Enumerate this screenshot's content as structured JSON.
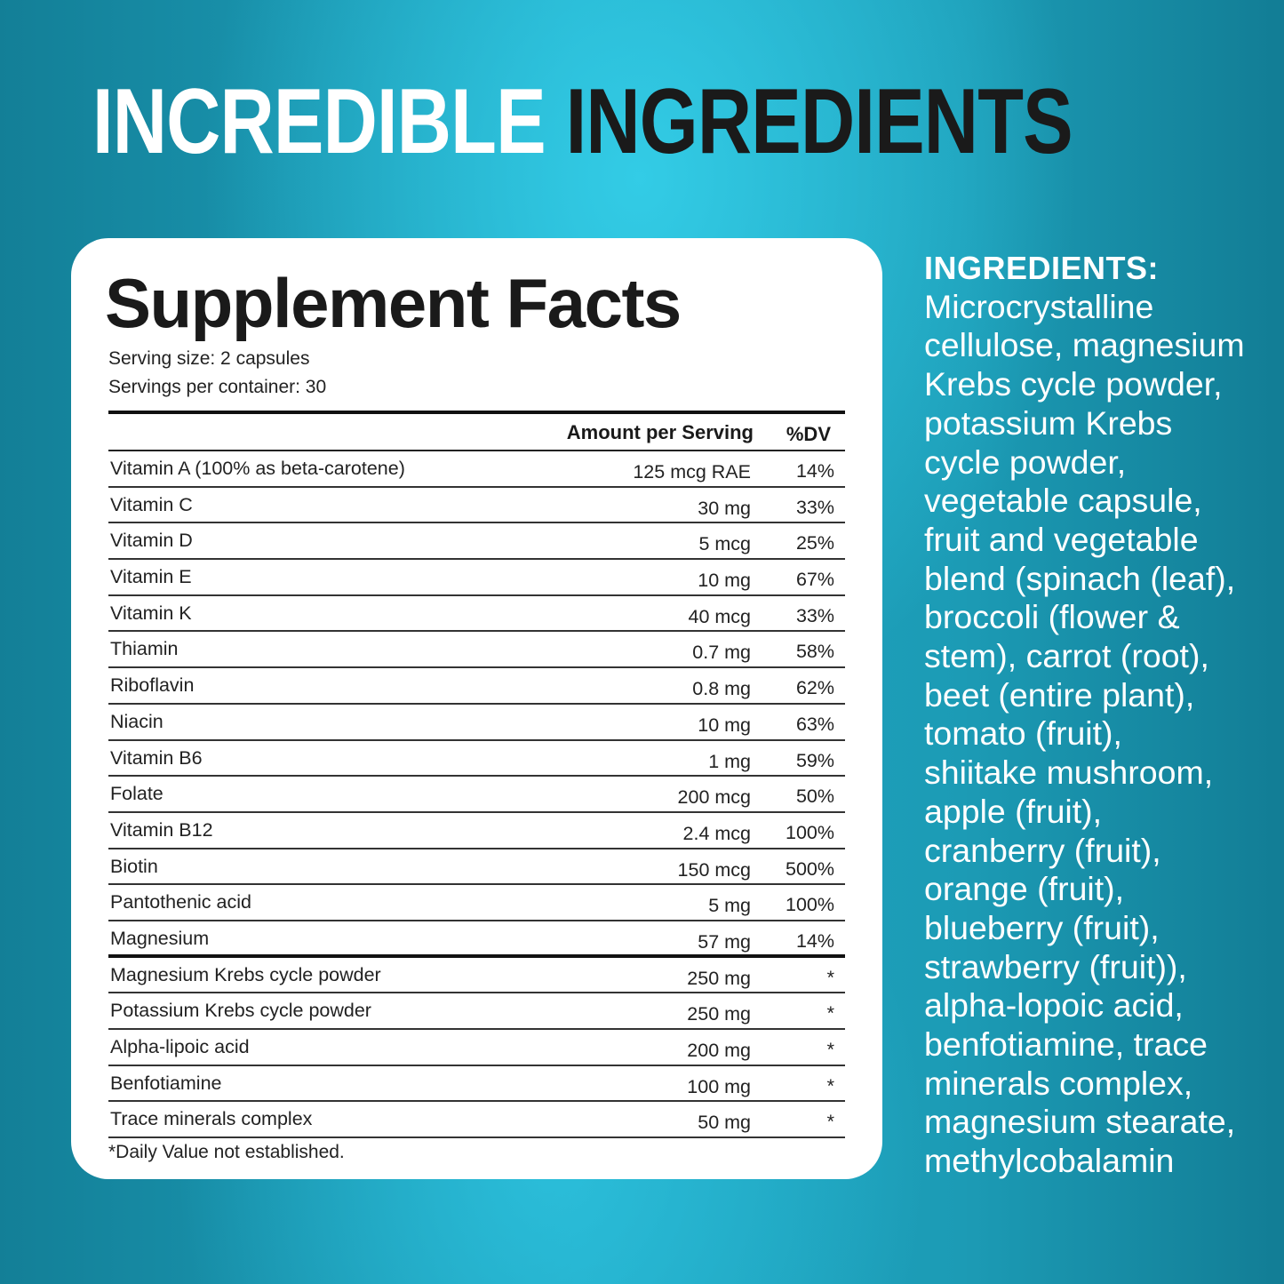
{
  "headline": {
    "part1": "INCREDIBLE",
    "part2": "INGREDIENTS"
  },
  "colors": {
    "background": "#1fa6c2",
    "card": "#ffffff",
    "headline_dark": "#1a1a1a"
  },
  "facts": {
    "title": "Supplement Facts",
    "serving_size": "Serving size: 2 capsules",
    "servings_per_container": "Servings per container: 30",
    "col_amount": "Amount per Serving",
    "col_dv": "%DV",
    "rows": [
      {
        "name": "Vitamin A (100% as beta-carotene)",
        "amount": "125 mcg RAE",
        "dv": "14%"
      },
      {
        "name": "Vitamin C",
        "amount": "30 mg",
        "dv": "33%"
      },
      {
        "name": "Vitamin D",
        "amount": "5 mcg",
        "dv": "25%"
      },
      {
        "name": "Vitamin E",
        "amount": "10 mg",
        "dv": "67%"
      },
      {
        "name": "Vitamin K",
        "amount": "40 mcg",
        "dv": "33%"
      },
      {
        "name": "Thiamin",
        "amount": "0.7 mg",
        "dv": "58%"
      },
      {
        "name": "Riboflavin",
        "amount": "0.8 mg",
        "dv": "62%"
      },
      {
        "name": "Niacin",
        "amount": "10 mg",
        "dv": "63%"
      },
      {
        "name": "Vitamin B6",
        "amount": "1 mg",
        "dv": "59%"
      },
      {
        "name": "Folate",
        "amount": "200 mcg",
        "dv": "50%"
      },
      {
        "name": "Vitamin B12",
        "amount": "2.4 mcg",
        "dv": "100%"
      },
      {
        "name": "Biotin",
        "amount": "150 mcg",
        "dv": "500%"
      },
      {
        "name": "Pantothenic acid",
        "amount": "5 mg",
        "dv": "100%"
      },
      {
        "name": "Magnesium",
        "amount": "57 mg",
        "dv": "14%"
      },
      {
        "name": "Magnesium Krebs cycle powder",
        "amount": "250 mg",
        "dv": "*"
      },
      {
        "name": "Potassium Krebs cycle powder",
        "amount": "250 mg",
        "dv": "*"
      },
      {
        "name": "Alpha-lipoic acid",
        "amount": "200 mg",
        "dv": "*"
      },
      {
        "name": "Benfotiamine",
        "amount": "100 mg",
        "dv": "*"
      },
      {
        "name": "Trace minerals complex",
        "amount": "50 mg",
        "dv": "*"
      }
    ],
    "footnote": "*Daily Value not established."
  },
  "ingredients": {
    "heading": "INGREDIENTS:",
    "lines": [
      "Microcrystalline",
      "cellulose, magnesium",
      "Krebs cycle powder,",
      "potassium Krebs",
      "cycle powder,",
      "vegetable capsule,",
      "fruit and vegetable",
      "blend (spinach (leaf),",
      "broccoli (flower &",
      "stem), carrot (root),",
      "beet (entire plant),",
      "tomato (fruit),",
      "shiitake mushroom,",
      "apple (fruit),",
      "cranberry (fruit),",
      "orange (fruit),",
      "blueberry (fruit),",
      "strawberry (fruit)),",
      "alpha-lopoic acid,",
      "benfotiamine, trace",
      "minerals complex,",
      "magnesium stearate,",
      "methylcobalamin"
    ]
  }
}
